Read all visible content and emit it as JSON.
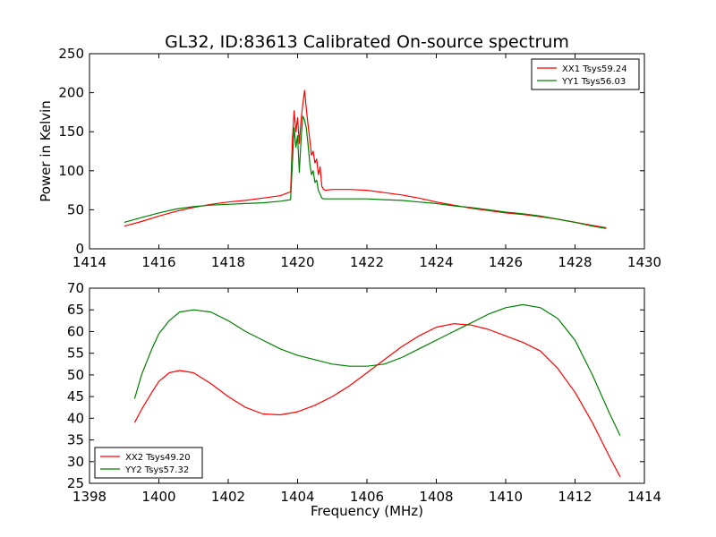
{
  "chart_data": [
    {
      "type": "line",
      "title": "GL32, ID:83613 Calibrated On-source spectrum",
      "xlabel": "",
      "ylabel": "Power in Kelvin",
      "xlim": [
        1414,
        1430
      ],
      "ylim": [
        0,
        250
      ],
      "xticks": [
        "1414",
        "1416",
        "1418",
        "1420",
        "1422",
        "1424",
        "1426",
        "1428",
        "1430"
      ],
      "yticks": [
        "0",
        "50",
        "100",
        "150",
        "200",
        "250"
      ],
      "legend": "top-right",
      "grid": false,
      "series": [
        {
          "name": "XX1 Tsys59.24",
          "color": "#ff0000",
          "x": [
            1415.0,
            1415.5,
            1416.0,
            1416.5,
            1417.0,
            1417.5,
            1418.0,
            1418.5,
            1419.0,
            1419.5,
            1419.8,
            1419.85,
            1419.9,
            1419.95,
            1420.0,
            1420.05,
            1420.1,
            1420.15,
            1420.2,
            1420.25,
            1420.3,
            1420.35,
            1420.4,
            1420.45,
            1420.5,
            1420.55,
            1420.6,
            1420.65,
            1420.7,
            1420.75,
            1420.8,
            1421.0,
            1421.5,
            1422.0,
            1422.5,
            1423.0,
            1423.5,
            1424.0,
            1424.5,
            1425.0,
            1425.5,
            1426.0,
            1426.5,
            1427.0,
            1427.5,
            1428.0,
            1428.5,
            1428.9
          ],
          "values": [
            29,
            35,
            42,
            48,
            53,
            57,
            60,
            62,
            65,
            68,
            73,
            140,
            177,
            150,
            168,
            135,
            165,
            185,
            203,
            180,
            160,
            140,
            120,
            125,
            110,
            115,
            95,
            105,
            80,
            76,
            75,
            76,
            76,
            75,
            72,
            69,
            65,
            60,
            56,
            52,
            49,
            46,
            44,
            41,
            38,
            34,
            30,
            27
          ]
        },
        {
          "name": "YY1 Tsys56.03",
          "color": "#008000",
          "x": [
            1415.0,
            1415.5,
            1416.0,
            1416.5,
            1417.0,
            1417.5,
            1418.0,
            1418.5,
            1419.0,
            1419.5,
            1419.8,
            1419.85,
            1419.9,
            1419.95,
            1420.0,
            1420.05,
            1420.1,
            1420.15,
            1420.2,
            1420.25,
            1420.3,
            1420.35,
            1420.4,
            1420.45,
            1420.5,
            1420.55,
            1420.6,
            1420.65,
            1420.7,
            1420.75,
            1420.8,
            1421.0,
            1421.5,
            1422.0,
            1422.5,
            1423.0,
            1423.5,
            1424.0,
            1424.5,
            1425.0,
            1425.5,
            1426.0,
            1426.5,
            1427.0,
            1427.5,
            1428.0,
            1428.5,
            1428.9
          ],
          "values": [
            34,
            40,
            46,
            51,
            54,
            56,
            57,
            58,
            59,
            61,
            63,
            110,
            155,
            130,
            145,
            98,
            140,
            170,
            165,
            155,
            135,
            110,
            95,
            100,
            85,
            88,
            75,
            70,
            65,
            64,
            64,
            64,
            64,
            64,
            63,
            62,
            60,
            58,
            55,
            53,
            50,
            47,
            45,
            42,
            38,
            34,
            29,
            26
          ]
        }
      ]
    },
    {
      "type": "line",
      "title": "",
      "xlabel": "Frequency (MHz)",
      "ylabel": "",
      "xlim": [
        1398,
        1414
      ],
      "ylim": [
        25,
        70
      ],
      "xticks": [
        "1398",
        "1400",
        "1402",
        "1404",
        "1406",
        "1408",
        "1410",
        "1412",
        "1414"
      ],
      "yticks": [
        "25",
        "30",
        "35",
        "40",
        "45",
        "50",
        "55",
        "60",
        "65",
        "70"
      ],
      "legend": "bottom-left",
      "grid": false,
      "series": [
        {
          "name": "XX2 Tsys49.20",
          "color": "#ff0000",
          "x": [
            1399.3,
            1399.5,
            1399.8,
            1400.0,
            1400.3,
            1400.6,
            1401.0,
            1401.5,
            1402.0,
            1402.5,
            1403.0,
            1403.5,
            1404.0,
            1404.5,
            1405.0,
            1405.5,
            1406.0,
            1406.5,
            1407.0,
            1407.5,
            1408.0,
            1408.5,
            1409.0,
            1409.5,
            1410.0,
            1410.5,
            1411.0,
            1411.5,
            1412.0,
            1412.5,
            1413.0,
            1413.3
          ],
          "values": [
            39,
            42,
            46,
            48.5,
            50.5,
            51,
            50.5,
            48,
            45,
            42.5,
            41,
            40.8,
            41.5,
            43,
            45,
            47.5,
            50.5,
            53.5,
            56.5,
            59,
            61,
            61.8,
            61.5,
            60.5,
            59,
            57.5,
            55.5,
            51.5,
            46,
            39,
            31,
            26.5
          ]
        },
        {
          "name": "YY2 Tsys57.32",
          "color": "#008000",
          "x": [
            1399.3,
            1399.5,
            1399.8,
            1400.0,
            1400.3,
            1400.6,
            1401.0,
            1401.5,
            1402.0,
            1402.5,
            1403.0,
            1403.5,
            1404.0,
            1404.5,
            1405.0,
            1405.5,
            1406.0,
            1406.5,
            1407.0,
            1407.5,
            1408.0,
            1408.5,
            1409.0,
            1409.5,
            1410.0,
            1410.5,
            1411.0,
            1411.5,
            1412.0,
            1412.5,
            1413.0,
            1413.3
          ],
          "values": [
            44.5,
            50,
            56,
            59.5,
            62.5,
            64.5,
            65,
            64.5,
            62.5,
            60,
            58,
            56,
            54.5,
            53.5,
            52.5,
            52,
            52,
            52.5,
            54,
            56,
            58,
            60,
            62,
            64,
            65.5,
            66.2,
            65.5,
            63,
            58,
            50,
            41,
            36
          ]
        }
      ]
    }
  ]
}
